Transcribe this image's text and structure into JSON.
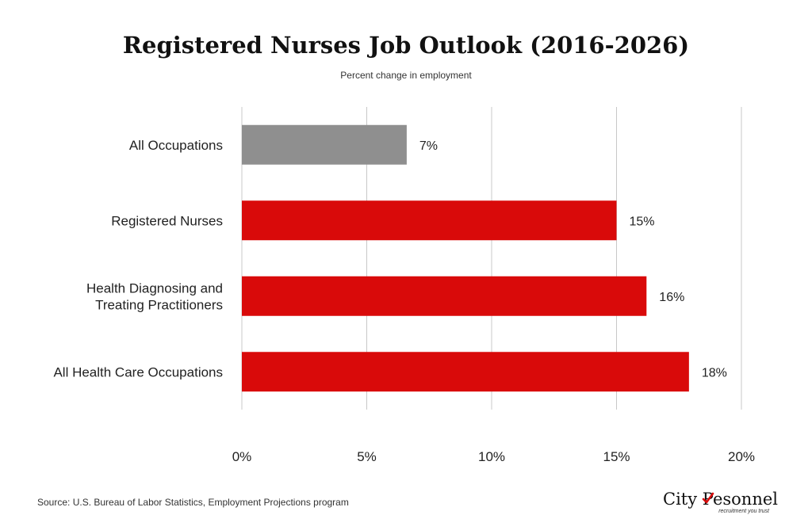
{
  "chart_data": {
    "type": "bar",
    "orientation": "horizontal",
    "title": "Registered Nurses Job Outlook (2016-2026)",
    "subtitle": "Percent change in employment",
    "categories": [
      "All Occupations",
      "Registered Nurses",
      "Health Diagnosing and Treating Practitioners",
      "All Health Care Occupations"
    ],
    "category_lines": [
      [
        "All Occupations"
      ],
      [
        "Registered Nurses"
      ],
      [
        "Health Diagnosing and",
        "Treating Practitioners"
      ],
      [
        "All Health Care Occupations"
      ]
    ],
    "values": [
      6.6,
      15,
      16.2,
      17.9
    ],
    "data_labels": [
      "7%",
      "15%",
      "16%",
      "18%"
    ],
    "bar_colors": [
      "#8f8f8f",
      "#d90a0a",
      "#d90a0a",
      "#d90a0a"
    ],
    "xlim": [
      0,
      20
    ],
    "x_ticks": [
      0,
      5,
      10,
      15,
      20
    ],
    "x_tick_labels": [
      "0%",
      "5%",
      "10%",
      "15%",
      "20%"
    ],
    "grid": true,
    "grid_color": "#c8c8c8"
  },
  "footer": {
    "source": "Source: U.S. Bureau of Labor Statistics, Employment Projections program"
  },
  "logo": {
    "name_prefix": "City Pe",
    "name_suffix": "sonnel",
    "tagline": "recruitment you trust",
    "check_color": "#d90a0a"
  }
}
